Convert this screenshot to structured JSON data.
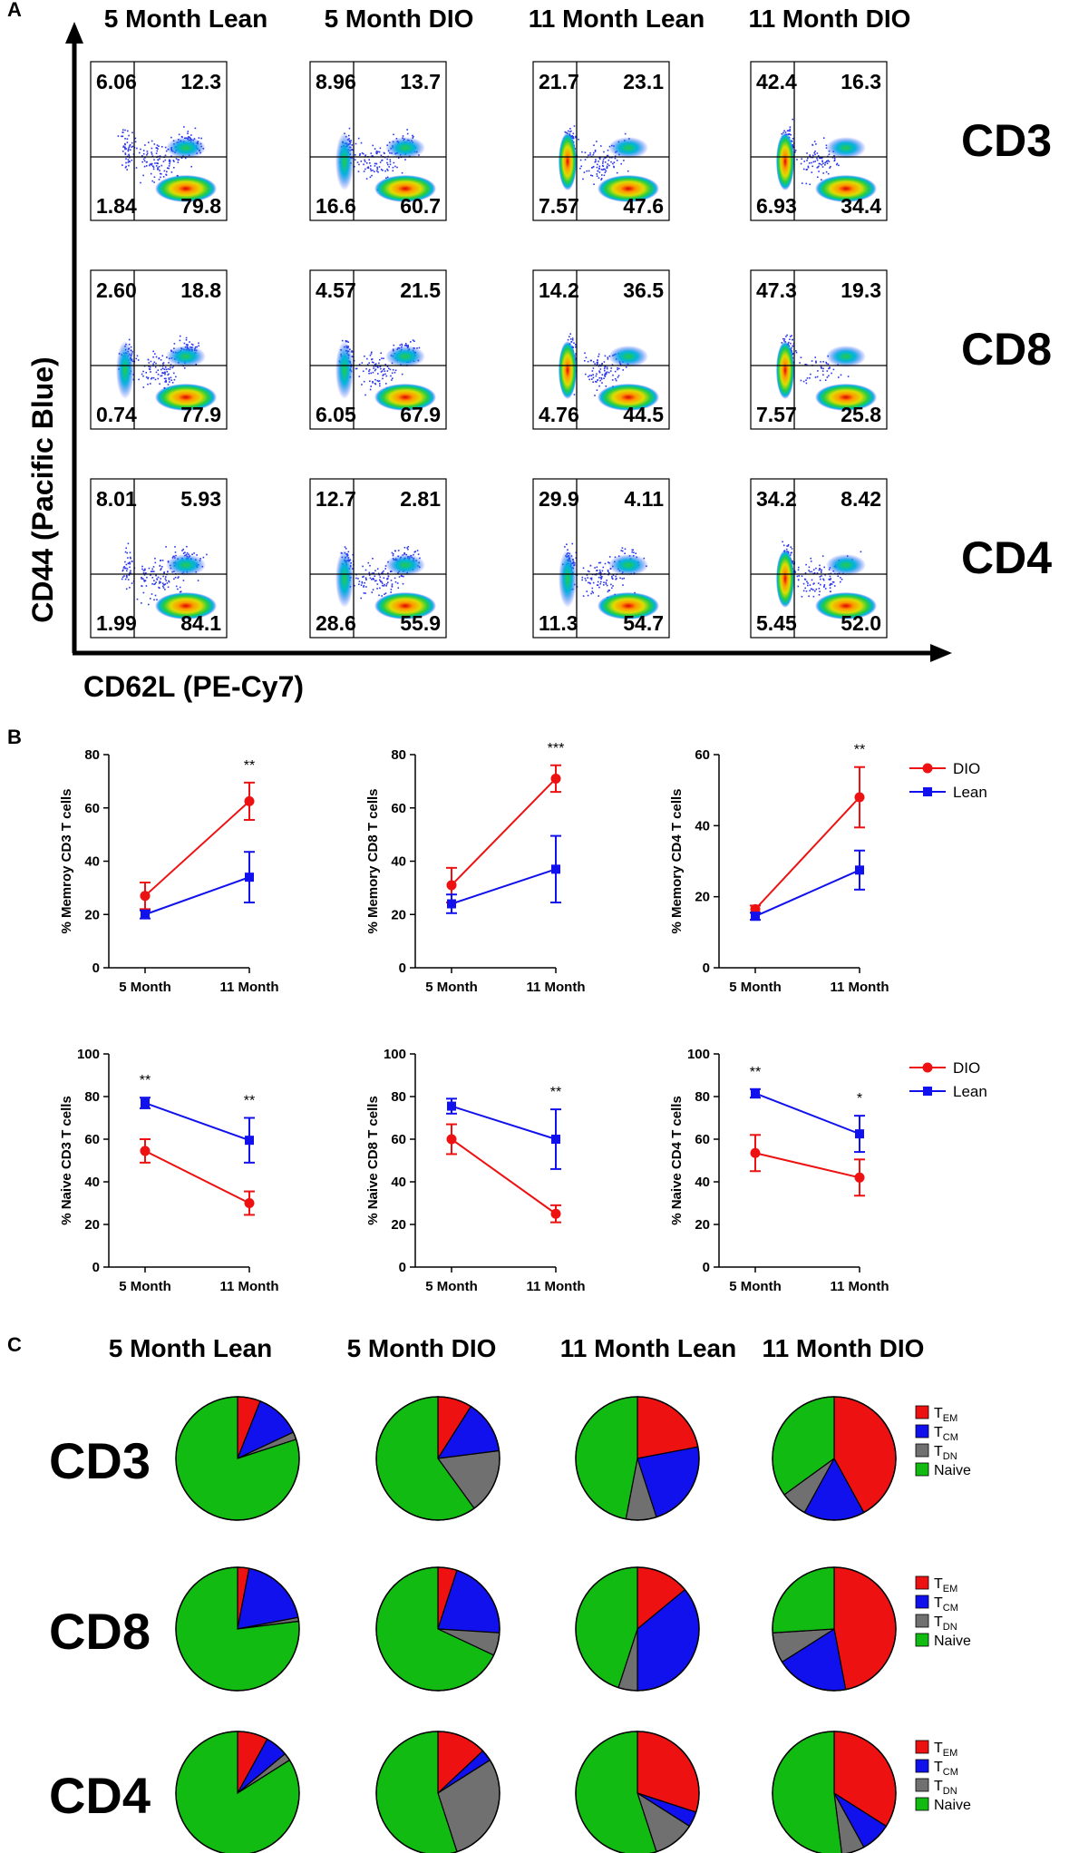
{
  "panel_labels": {
    "a": "A",
    "b": "B",
    "c": "C"
  },
  "flow": {
    "columns": [
      "5 Month Lean",
      "5 Month DIO",
      "11 Month Lean",
      "11 Month DIO"
    ],
    "rows": [
      "CD3",
      "CD8",
      "CD4"
    ],
    "y_axis_label": "CD44 (Pacific Blue)",
    "x_axis_label": "CD62L (PE-Cy7)",
    "quadrants": [
      [
        [
          "6.06",
          "12.3",
          "1.84",
          "79.8"
        ],
        [
          "8.96",
          "13.7",
          "16.6",
          "60.7"
        ],
        [
          "21.7",
          "23.1",
          "7.57",
          "47.6"
        ],
        [
          "42.4",
          "16.3",
          "6.93",
          "34.4"
        ]
      ],
      [
        [
          "2.60",
          "18.8",
          "0.74",
          "77.9"
        ],
        [
          "4.57",
          "21.5",
          "6.05",
          "67.9"
        ],
        [
          "14.2",
          "36.5",
          "4.76",
          "44.5"
        ],
        [
          "47.3",
          "19.3",
          "7.57",
          "25.8"
        ]
      ],
      [
        [
          "8.01",
          "5.93",
          "1.99",
          "84.1"
        ],
        [
          "12.7",
          "2.81",
          "28.6",
          "55.9"
        ],
        [
          "29.9",
          "4.11",
          "11.3",
          "54.7"
        ],
        [
          "34.2",
          "8.42",
          "5.45",
          "52.0"
        ]
      ]
    ]
  },
  "chart_data": [
    {
      "type": "line",
      "ylabel": "% Memroy CD3 T cells",
      "categories": [
        "5 Month",
        "11 Month"
      ],
      "ylim": [
        0,
        80
      ],
      "yticks": [
        0,
        20,
        40,
        60,
        80
      ],
      "significance": [
        "",
        "**"
      ],
      "series": [
        {
          "name": "DIO",
          "color": "#ee1111",
          "values": [
            27,
            62.5
          ],
          "error": [
            5,
            7
          ]
        },
        {
          "name": "Lean",
          "color": "#1111ee",
          "values": [
            20,
            34
          ],
          "error": [
            1.5,
            9.5
          ]
        }
      ]
    },
    {
      "type": "line",
      "ylabel": "% Memory CD8 T cells",
      "categories": [
        "5 Month",
        "11 Month"
      ],
      "ylim": [
        0,
        80
      ],
      "yticks": [
        0,
        20,
        40,
        60,
        80
      ],
      "significance": [
        "",
        "***"
      ],
      "series": [
        {
          "name": "DIO",
          "color": "#ee1111",
          "values": [
            31,
            71
          ],
          "error": [
            6.5,
            5
          ]
        },
        {
          "name": "Lean",
          "color": "#1111ee",
          "values": [
            24,
            37
          ],
          "error": [
            3.5,
            12.5
          ]
        }
      ]
    },
    {
      "type": "line",
      "ylabel": "% Memory CD4 T cells",
      "categories": [
        "5 Month",
        "11 Month"
      ],
      "ylim": [
        0,
        60
      ],
      "yticks": [
        0,
        20,
        40,
        60
      ],
      "legend": [
        "DIO",
        "Lean"
      ],
      "significance": [
        "",
        "**"
      ],
      "series": [
        {
          "name": "DIO",
          "color": "#ee1111",
          "values": [
            16.5,
            48
          ],
          "error": [
            1,
            8.5
          ]
        },
        {
          "name": "Lean",
          "color": "#1111ee",
          "values": [
            14.5,
            27.5
          ],
          "error": [
            1,
            5.5
          ]
        }
      ]
    },
    {
      "type": "line",
      "ylabel": "% Naive CD3 T cells",
      "categories": [
        "5 Month",
        "11 Month"
      ],
      "ylim": [
        0,
        100
      ],
      "yticks": [
        0,
        20,
        40,
        60,
        80,
        100
      ],
      "significance": [
        "**",
        "**"
      ],
      "series": [
        {
          "name": "DIO",
          "color": "#ee1111",
          "values": [
            54.5,
            30
          ],
          "error": [
            5.5,
            5.5
          ]
        },
        {
          "name": "Lean",
          "color": "#1111ee",
          "values": [
            77,
            59.5
          ],
          "error": [
            2.5,
            10.5
          ]
        }
      ]
    },
    {
      "type": "line",
      "ylabel": "% Naive CD8 T cells",
      "categories": [
        "5 Month",
        "11 Month"
      ],
      "ylim": [
        0,
        100
      ],
      "yticks": [
        0,
        20,
        40,
        60,
        80,
        100
      ],
      "significance": [
        "",
        "**"
      ],
      "series": [
        {
          "name": "DIO",
          "color": "#ee1111",
          "values": [
            60,
            25
          ],
          "error": [
            7,
            4
          ]
        },
        {
          "name": "Lean",
          "color": "#1111ee",
          "values": [
            75.5,
            60
          ],
          "error": [
            3.5,
            14
          ]
        }
      ]
    },
    {
      "type": "line",
      "ylabel": "% Naive CD4 T cells",
      "categories": [
        "5 Month",
        "11 Month"
      ],
      "ylim": [
        0,
        100
      ],
      "yticks": [
        0,
        20,
        40,
        60,
        80,
        100
      ],
      "legend": [
        "DIO",
        "Lean"
      ],
      "significance": [
        "**",
        "*"
      ],
      "series": [
        {
          "name": "DIO",
          "color": "#ee1111",
          "values": [
            53.5,
            42
          ],
          "error": [
            8.5,
            8.5
          ]
        },
        {
          "name": "Lean",
          "color": "#1111ee",
          "values": [
            81.5,
            62.5
          ],
          "error": [
            2,
            8.5
          ]
        }
      ]
    },
    {
      "type": "pie",
      "columns": [
        "5 Month Lean",
        "5 Month DIO",
        "11 Month Lean",
        "11 Month DIO"
      ],
      "rows": [
        "CD3",
        "CD8",
        "CD4"
      ],
      "slice_labels": [
        "EM",
        "CM",
        "DN",
        "Naive"
      ],
      "slice_colors": [
        "#ee1111",
        "#1111ee",
        "#707070",
        "#11bb11"
      ],
      "legend": [
        {
          "main": "T",
          "sub": "EM"
        },
        {
          "main": "T",
          "sub": "CM"
        },
        {
          "main": "T",
          "sub": "DN"
        },
        {
          "main": "Naive",
          "sub": ""
        }
      ],
      "values": [
        [
          [
            6,
            12,
            2,
            80
          ],
          [
            9,
            14,
            17,
            60
          ],
          [
            22,
            23,
            8,
            47
          ],
          [
            42,
            16,
            7,
            35
          ]
        ],
        [
          [
            3,
            19,
            1,
            77
          ],
          [
            5,
            21,
            6,
            68
          ],
          [
            14,
            36,
            5,
            45
          ],
          [
            47,
            19,
            8,
            26
          ]
        ],
        [
          [
            8,
            6,
            2,
            84
          ],
          [
            13,
            3,
            29,
            55
          ],
          [
            30,
            4,
            11,
            55
          ],
          [
            34,
            8,
            6,
            52
          ]
        ]
      ]
    }
  ]
}
